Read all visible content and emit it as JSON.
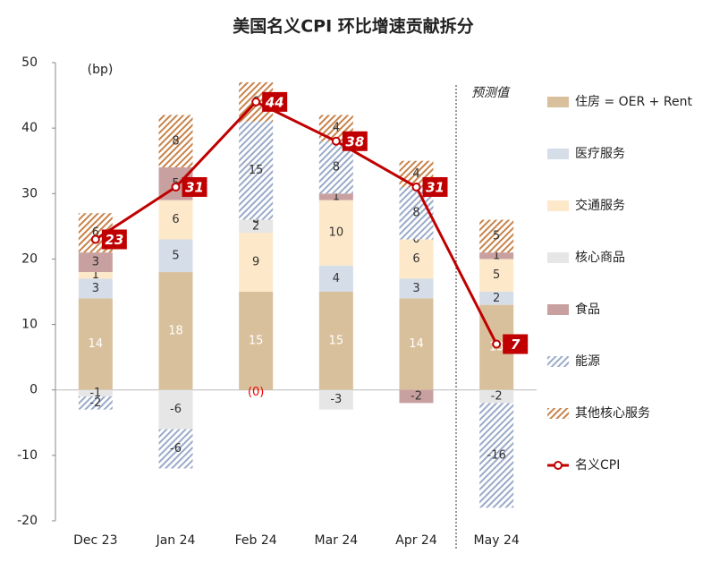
{
  "chart_data": {
    "type": "bar",
    "title": "美国名义CPI 环比增速贡献拆分",
    "unit_label": "(bp)",
    "annotation": "预测值",
    "categories": [
      "Dec 23",
      "Jan 24",
      "Feb 24",
      "Mar 24",
      "Apr 24",
      "May 24"
    ],
    "ylim": [
      -20,
      50
    ],
    "yticks": [
      -20,
      -10,
      0,
      10,
      20,
      30,
      40,
      50
    ],
    "series": [
      {
        "name": "住房 = OER + Rent",
        "color": "#d9c09c",
        "hatch": false,
        "values": [
          14,
          18,
          15,
          15,
          14,
          13
        ]
      },
      {
        "name": "医疗服务",
        "color": "#d5dde8",
        "hatch": false,
        "values": [
          3,
          5,
          0,
          4,
          3,
          2
        ],
        "value_labels": [
          "3",
          "5",
          "(0)",
          "4",
          "3",
          "2"
        ]
      },
      {
        "name": "交通服务",
        "color": "#fde9c9",
        "hatch": false,
        "values": [
          1,
          6,
          9,
          10,
          6,
          5
        ]
      },
      {
        "name": "核心商品",
        "color": "#e6e6e6",
        "hatch": false,
        "values": [
          -1,
          -6,
          2,
          -3,
          0,
          -2
        ]
      },
      {
        "name": "食品",
        "color": "#c9a0a0",
        "hatch": false,
        "values": [
          3,
          5,
          0,
          1,
          -2,
          1
        ]
      },
      {
        "name": "能源",
        "color": "#9aaac8",
        "hatch": true,
        "values": [
          -2,
          -6,
          15,
          8,
          8,
          -16
        ]
      },
      {
        "name": "其他核心服务",
        "color": "#c8834a",
        "hatch": true,
        "values": [
          6,
          8,
          6,
          4,
          4,
          5
        ]
      }
    ],
    "line": {
      "name": "名义CPI",
      "color": "#c00000",
      "values": [
        23,
        31,
        44,
        38,
        31,
        7
      ]
    }
  }
}
